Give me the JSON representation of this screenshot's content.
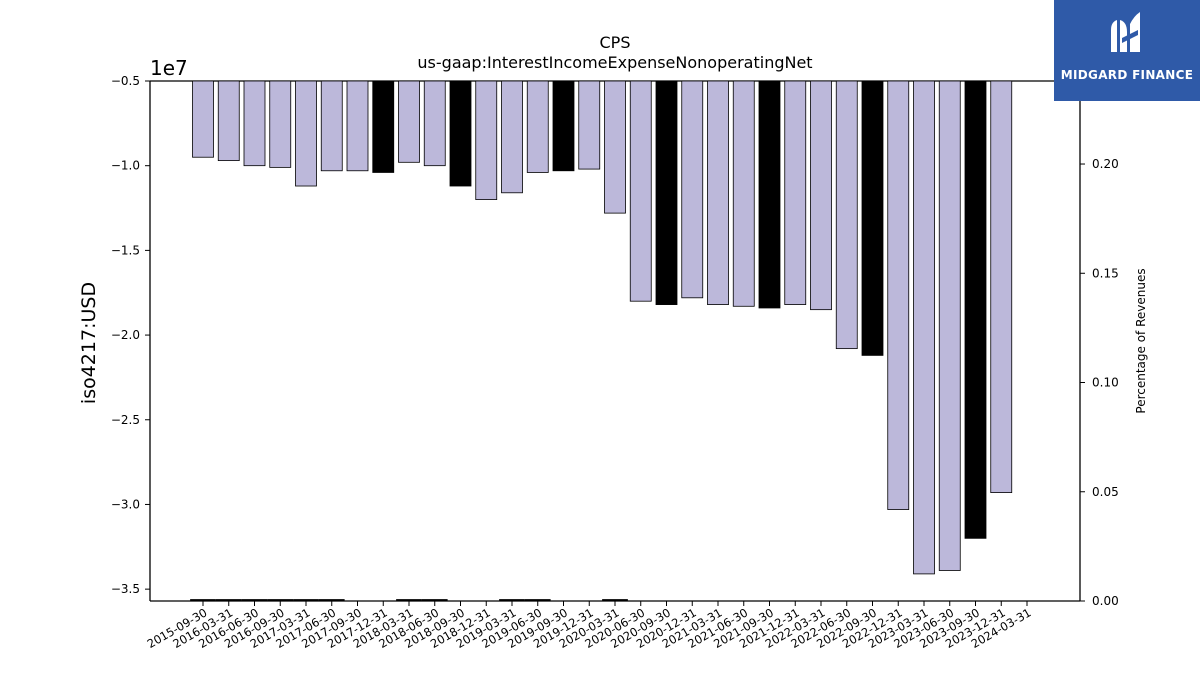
{
  "chart_data": {
    "type": "bar",
    "title": "CPS",
    "subtitle": "us-gaap:InterestIncomeExpenseNonoperatingNet",
    "ylabel": "iso4217:USD",
    "y_offset_label": "1e7",
    "y2label": "Percentage of Revenues",
    "ylim": [
      -3.57,
      -0.5
    ],
    "y2lim": [
      0.0,
      0.238
    ],
    "yticks": [
      "-0.5",
      "-1.0",
      "-1.5",
      "-2.0",
      "-2.5",
      "-3.0",
      "-3.5"
    ],
    "y2ticks": [
      "0.20",
      "0.15",
      "0.10",
      "0.05",
      "0.00"
    ],
    "categories": [
      "2015-09-30",
      "2016-03-31",
      "2016-06-30",
      "2016-09-30",
      "2017-03-31",
      "2017-06-30",
      "2017-09-30",
      "2017-12-31",
      "2018-03-31",
      "2018-06-30",
      "2018-09-30",
      "2018-12-31",
      "2019-03-31",
      "2019-06-30",
      "2019-09-30",
      "2019-12-31",
      "2020-03-31",
      "2020-06-30",
      "2020-09-30",
      "2020-12-31",
      "2021-03-31",
      "2021-06-30",
      "2021-09-30",
      "2021-12-31",
      "2022-03-31",
      "2022-06-30",
      "2022-09-30",
      "2022-12-31",
      "2023-03-31",
      "2023-06-30",
      "2023-09-30",
      "2023-12-31",
      "2024-03-31"
    ],
    "values": [
      -0.95,
      -0.97,
      -1.0,
      -1.01,
      -1.12,
      -1.03,
      -1.03,
      -1.04,
      -0.98,
      -1.0,
      -1.12,
      -1.2,
      -1.16,
      -1.04,
      -1.03,
      -1.02,
      -1.28,
      -1.8,
      -1.82,
      -1.78,
      -1.82,
      -1.83,
      -1.84,
      -1.82,
      -1.85,
      -2.08,
      -2.12,
      -3.03,
      -3.41,
      -3.39,
      -3.2,
      -2.93,
      null
    ],
    "highlight": [
      false,
      false,
      false,
      false,
      false,
      false,
      false,
      true,
      false,
      false,
      true,
      false,
      false,
      false,
      true,
      false,
      false,
      false,
      true,
      false,
      false,
      false,
      true,
      false,
      false,
      false,
      true,
      false,
      false,
      false,
      true,
      false,
      false
    ],
    "pct_of_revenues": [
      0.0005,
      0.0005,
      0.0005,
      0.0005,
      0.0005,
      0.0005,
      0,
      0,
      0.0005,
      0.0005,
      0,
      0,
      0.0005,
      0.0005,
      0,
      0,
      0.0005,
      0,
      0,
      0,
      0,
      0,
      0,
      0,
      0,
      0,
      0,
      0,
      0,
      0,
      0,
      0,
      0
    ],
    "colors": {
      "bar": "#bcb8da",
      "highlight": "#000000",
      "edge": "#000000"
    }
  },
  "logo": {
    "brand": "MIDGARD FINANCE",
    "icon": "midgard-logo-icon"
  }
}
